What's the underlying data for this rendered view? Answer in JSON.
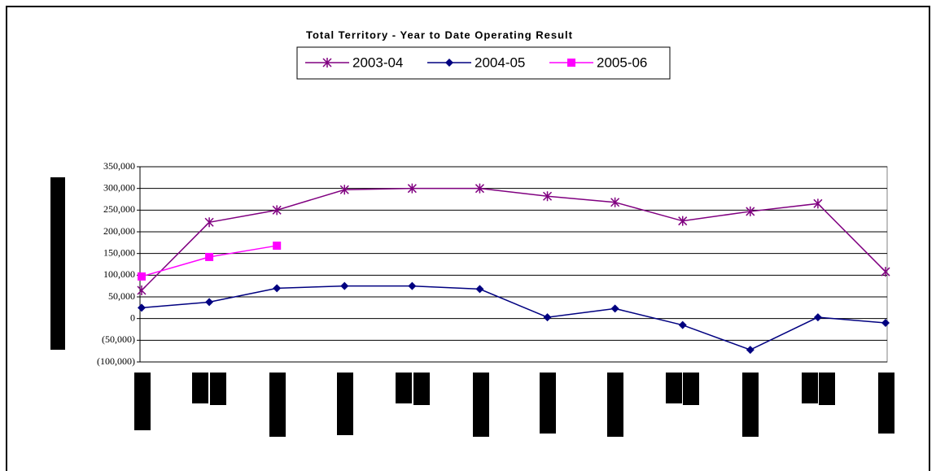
{
  "chart_data": {
    "type": "line",
    "title": "Total Territory - Year to Date Operating Result",
    "categories": [
      null,
      null,
      null,
      null,
      null,
      null,
      null,
      null,
      null,
      null,
      null,
      null
    ],
    "series": [
      {
        "name": "2003-04",
        "color": "#800080",
        "marker": "star",
        "values": [
          65000,
          222000,
          250000,
          297000,
          300000,
          300000,
          282000,
          268000,
          225000,
          247000,
          265000,
          108000
        ]
      },
      {
        "name": "2004-05",
        "color": "#000080",
        "marker": "diamond",
        "values": [
          25000,
          38000,
          70000,
          75000,
          75000,
          68000,
          3000,
          23000,
          -15000,
          -72000,
          3000,
          -10000
        ]
      },
      {
        "name": "2005-06",
        "color": "#ff00ff",
        "marker": "square",
        "values": [
          97000,
          142000,
          168000,
          null,
          null,
          null,
          null,
          null,
          null,
          null,
          null,
          null
        ]
      }
    ],
    "ylim": [
      -100000,
      350000
    ],
    "yticks": [
      {
        "value": -100000,
        "label": "(100,000)"
      },
      {
        "value": -50000,
        "label": "(50,000)"
      },
      0,
      {
        "value": 50000,
        "label": "50,000"
      },
      {
        "value": 100000,
        "label": "100,000"
      },
      {
        "value": 150000,
        "label": "150,000"
      },
      {
        "value": 200000,
        "label": "200,000"
      },
      {
        "value": 250000,
        "label": "250,000"
      },
      {
        "value": 300000,
        "label": "300,000"
      },
      {
        "value": 350000,
        "label": "350,000"
      }
    ],
    "grid": true
  }
}
